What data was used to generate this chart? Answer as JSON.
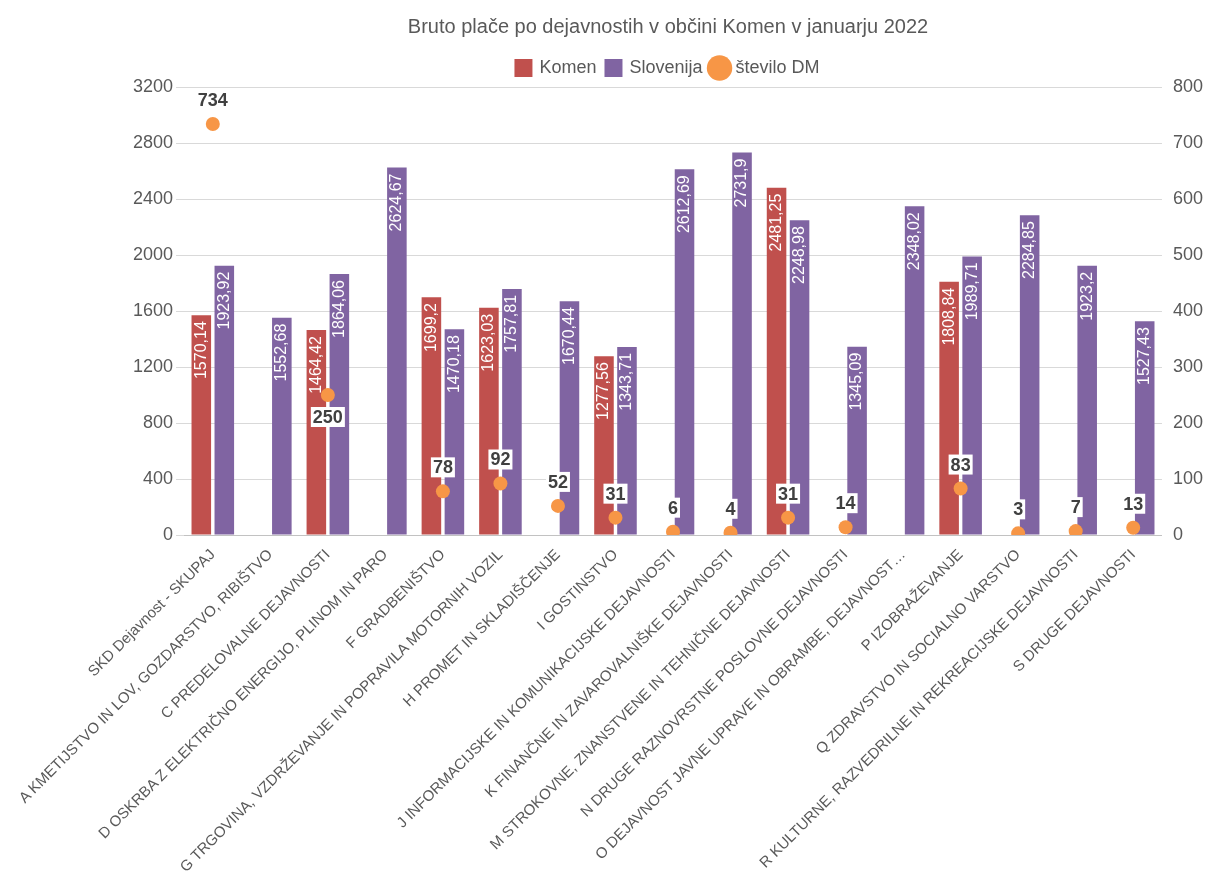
{
  "chart_data": {
    "type": "bar",
    "title": "Bruto plače po dejavnostih v občini Komen v januarju 2022",
    "categories": [
      "SKD Dejavnost - SKUPAJ",
      "A KMETIJSTVO IN LOV, GOZDARSTVO, RIBIŠTVO",
      "C PREDELOVALNE DEJAVNOSTI",
      "D OSKRBA Z ELEKTRIČNO ENERGIJO, PLINOM IN PARO",
      "F GRADBENIŠTVO",
      "G TRGOVINA, VZDRŽEVANJE IN POPRAVILA MOTORNIH VOZIL",
      "H PROMET IN SKLADIŠČENJE",
      "I GOSTINSTVO",
      "J INFORMACIJSKE IN KOMUNIKACIJSKE DEJAVNOSTI",
      "K FINANČNE IN ZAVAROVALNIŠKE DEJAVNOSTI",
      "M STROKOVNE, ZNANSTVENE IN TEHNIČNE DEJAVNOSTI",
      "N DRUGE RAZNOVRSTNE POSLOVNE DEJAVNOSTI",
      "O DEJAVNOST JAVNE UPRAVE IN OBRAMBE, DEJAVNOST…",
      "P IZOBRAŽEVANJE",
      "Q ZDRAVSTVO IN SOCIALNO VARSTVO",
      "R KULTURNE, RAZVEDRILNE IN REKREACIJSKE DEJAVNOSTI",
      "S DRUGE DEJAVNOSTI"
    ],
    "series": [
      {
        "name": "Komen",
        "color": "#c0504d",
        "values": [
          1570.14,
          null,
          1464.42,
          null,
          1699.2,
          1623.03,
          null,
          1277.56,
          null,
          null,
          2481.25,
          null,
          null,
          1808.84,
          null,
          null,
          null
        ],
        "value_labels": [
          "1570,14",
          null,
          "1464,42",
          null,
          "1699,2",
          "1623,03",
          null,
          "1277,56",
          null,
          null,
          "2481,25",
          null,
          null,
          "1808,84",
          null,
          null,
          null
        ]
      },
      {
        "name": "Slovenija",
        "color": "#8064a2",
        "values": [
          1923.92,
          1552.68,
          1864.06,
          2624.67,
          1470.18,
          1757.81,
          1670.44,
          1343.71,
          2612.69,
          2731.9,
          2248.98,
          1345.09,
          2348.02,
          1989.71,
          2284.85,
          1923.2,
          1527.43
        ],
        "value_labels": [
          "1923,92",
          "1552,68",
          "1864,06",
          "2624,67",
          "1470,18",
          "1757,81",
          "1670,44",
          "1343,71",
          "2612,69",
          "2731,9",
          "2248,98",
          "1345,09",
          "2348,02",
          "1989,71",
          "2284,85",
          "1923,2",
          "1527,43"
        ]
      },
      {
        "name": "število DM",
        "type": "scatter",
        "axis": "y2",
        "color": "#f79646",
        "values": [
          734,
          null,
          250,
          null,
          78,
          92,
          52,
          31,
          6,
          4,
          31,
          14,
          null,
          83,
          3,
          7,
          13
        ],
        "value_labels": [
          "734",
          null,
          "250",
          null,
          "78",
          "92",
          "52",
          "31",
          "6",
          "4",
          "31",
          "14",
          null,
          "83",
          "3",
          "7",
          "13"
        ]
      }
    ],
    "ylim": [
      0,
      3200
    ],
    "yticks": [
      0,
      400,
      800,
      1200,
      1600,
      2000,
      2400,
      2800,
      3200
    ],
    "y2lim": [
      0,
      800
    ],
    "y2ticks": [
      0,
      100,
      200,
      300,
      400,
      500,
      600,
      700,
      800
    ],
    "grid": "y",
    "legend": "top",
    "marker": "circle"
  }
}
